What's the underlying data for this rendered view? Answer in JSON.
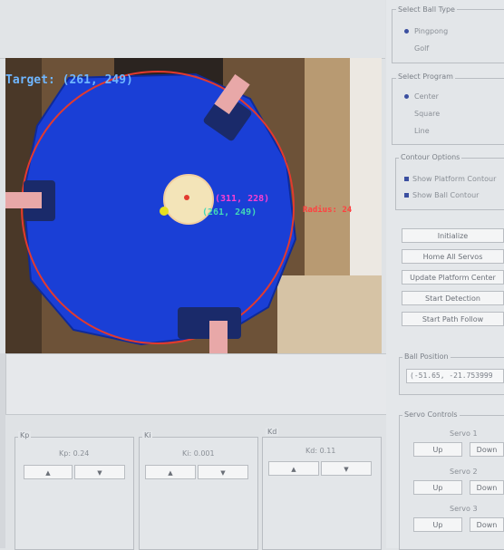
{
  "video": {
    "target_label": "Target: (261, 249)",
    "ball_label": "(311, 228)",
    "center_label": "(261, 249)",
    "radius_label": "Radius: 24"
  },
  "ball_type": {
    "title": "Select Ball Type",
    "options": [
      "Pingpong",
      "Golf"
    ],
    "selected": "Pingpong"
  },
  "program": {
    "title": "Select Program",
    "options": [
      "Center",
      "Square",
      "Line"
    ],
    "selected": "Center"
  },
  "contour": {
    "title": "Contour Options",
    "options": [
      "Show Platform Contour",
      "Show Ball Contour"
    ]
  },
  "actions": [
    "Initialize",
    "Home All Servos",
    "Update Platform Center",
    "Start Detection",
    "Start Path Follow"
  ],
  "ball_position": {
    "title": "Ball Position",
    "value": "(-51.65, -21.753999"
  },
  "pid": [
    {
      "title": "Kp",
      "label": "Kp: 0.24"
    },
    {
      "title": "Ki",
      "label": "Ki: 0.001"
    },
    {
      "title": "Kd",
      "label": "Kd: 0.11"
    }
  ],
  "arrows": {
    "up": "▲",
    "down": "▼"
  },
  "servo": {
    "title": "Servo Controls",
    "items": [
      {
        "label": "Servo 1",
        "up": "Up",
        "down": "Down"
      },
      {
        "label": "Servo 2",
        "up": "Up",
        "down": "Down"
      },
      {
        "label": "Servo 3",
        "up": "Up",
        "down": "Down"
      }
    ]
  }
}
